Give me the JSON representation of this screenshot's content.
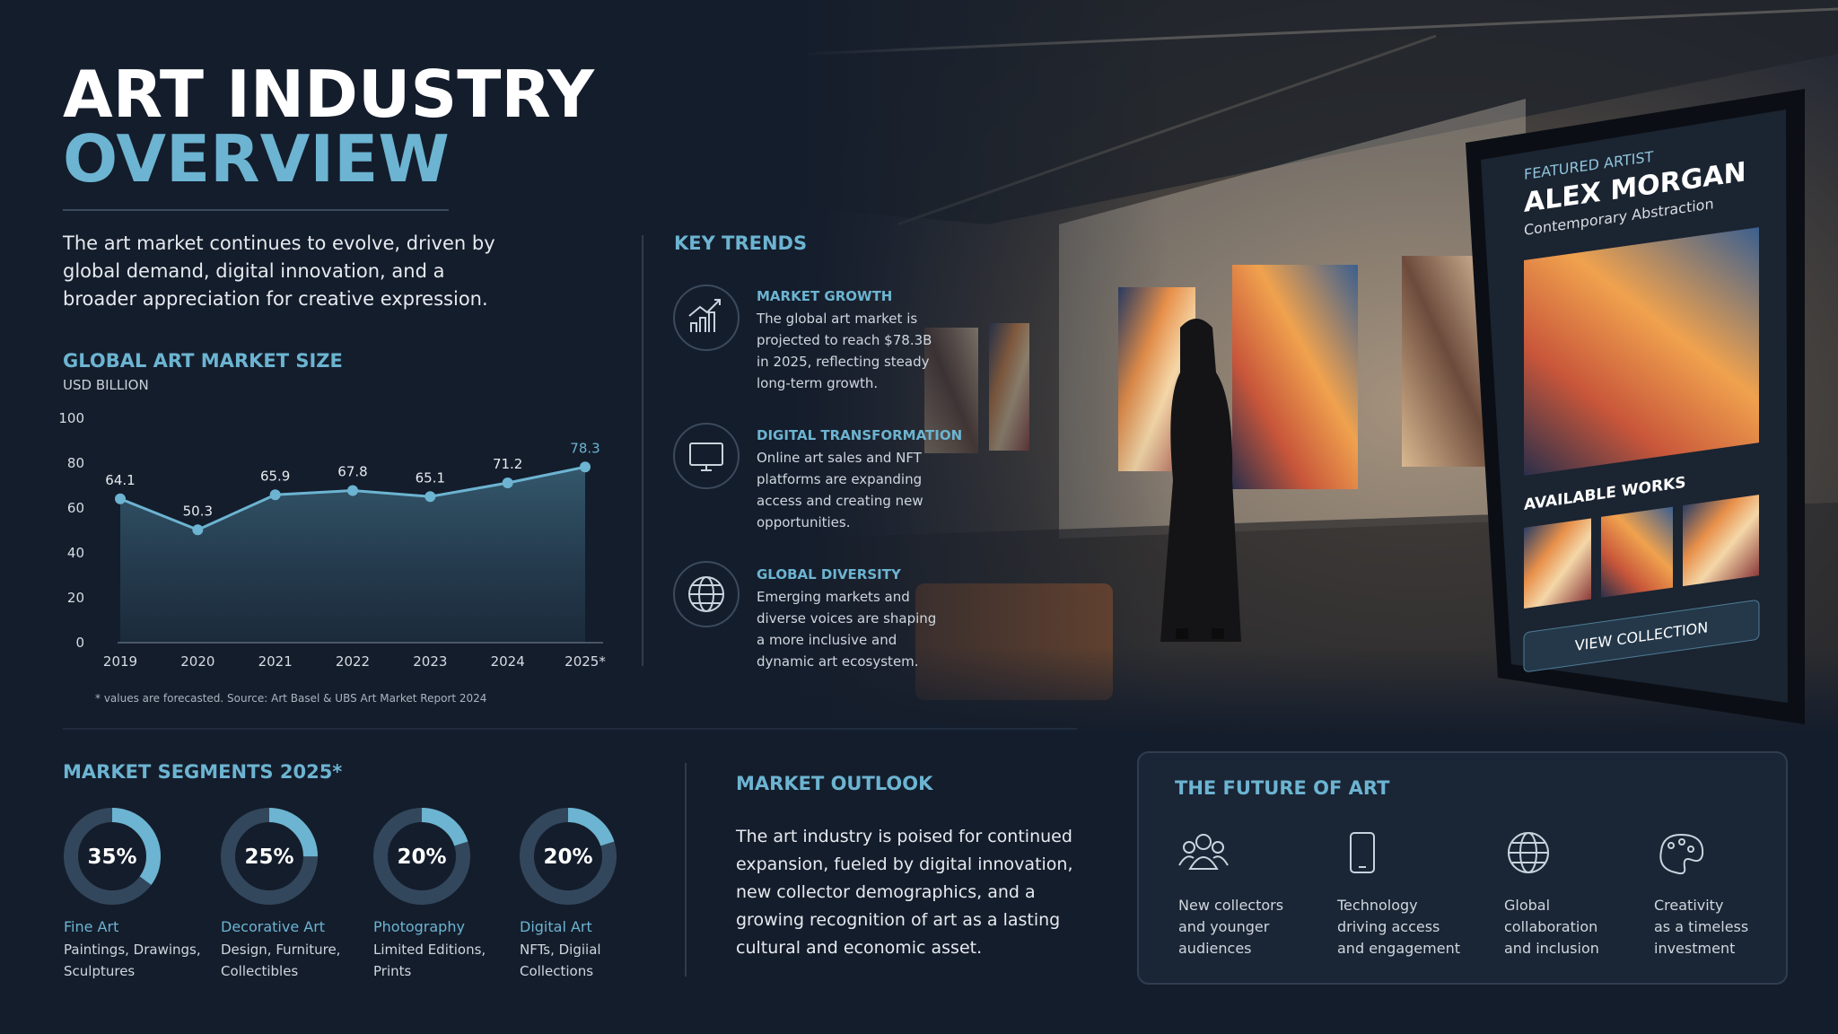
{
  "header": {
    "title_line1": "ART INDUSTRY",
    "title_line2": "OVERVIEW",
    "description": [
      "The art market continues to evolve, driven by",
      "global demand, digital innovation, and a",
      "broader appreciation for creative expression."
    ]
  },
  "key_trends": {
    "title": "KEY TRENDS",
    "items": [
      {
        "title": "MARKET GROWTH",
        "lines": [
          "The global art market is",
          "projected to reach $78.3B",
          "in 2025, reflecting steady",
          "long-term growth."
        ]
      },
      {
        "title": "DIGITAL TRANSFORMATION",
        "lines": [
          "Online art sales and NFT",
          "platforms are expanding",
          "access and creating new",
          "opportunities."
        ]
      },
      {
        "title": "GLOBAL DIVERSITY",
        "lines": [
          "Emerging markets and",
          "diverse voices are shaping",
          "a more inclusive and",
          "dynamic art ecosystem."
        ]
      }
    ]
  },
  "featured": {
    "label": "FEATURED ARTIST",
    "name": "ALEX MORGAN",
    "style": "Contemporary Abstraction",
    "works_title": "AVAILABLE WORKS",
    "button": "VIEW COLLECTION"
  },
  "outlook": {
    "title": "MARKET OUTLOOK",
    "lines": [
      "The art industry is poised for continued",
      "expansion, fueled by digital innovation,",
      "new collector demographics, and a",
      "growing recognition of art as a lasting",
      "cultural and economic asset."
    ]
  },
  "future": {
    "title": "THE FUTURE OF ART",
    "items": [
      {
        "lines": [
          "New collectors",
          "and younger",
          "audiences"
        ]
      },
      {
        "lines": [
          "Technology",
          "driving access",
          "and engagement"
        ]
      },
      {
        "lines": [
          "Global",
          "collaboration",
          "and inclusion"
        ]
      },
      {
        "lines": [
          "Creativity",
          "as a timeless",
          "investment"
        ]
      }
    ]
  },
  "chart_data": [
    {
      "type": "line",
      "title": "GLOBAL ART MARKET SIZE",
      "y_label": "USD BILLION",
      "categories": [
        "2019",
        "2020",
        "2021",
        "2022",
        "2023",
        "2024",
        "2025*"
      ],
      "values": [
        64.1,
        50.3,
        65.9,
        67.8,
        65.1,
        71.2,
        78.3
      ],
      "color": "#6cb4d1",
      "ylim": [
        0,
        100
      ],
      "yticks": [
        0,
        20,
        40,
        60,
        80,
        100
      ],
      "grid": false,
      "note": "* values are forecasted. Source: Art Basel & UBS Art Market Report 2024"
    },
    {
      "type": "donut",
      "title": "MARKET SEGMENTS 2025*",
      "categories": [
        "Fine Art",
        "Decorative Art",
        "Photography",
        "Digital Art"
      ],
      "descriptions": [
        [
          "Paintings, Drawings,",
          "Sculptures"
        ],
        [
          "Design, Furniture,",
          "Collectibles"
        ],
        [
          "Limited Editions,",
          "Prints"
        ],
        [
          "NFTs, Digiial",
          "Collections"
        ]
      ],
      "values": [
        35,
        25,
        20,
        20
      ],
      "value_labels": [
        "35%",
        "25%",
        "20%",
        "20%"
      ],
      "color": "#6cb4d1",
      "track_color": "#33475c"
    }
  ]
}
